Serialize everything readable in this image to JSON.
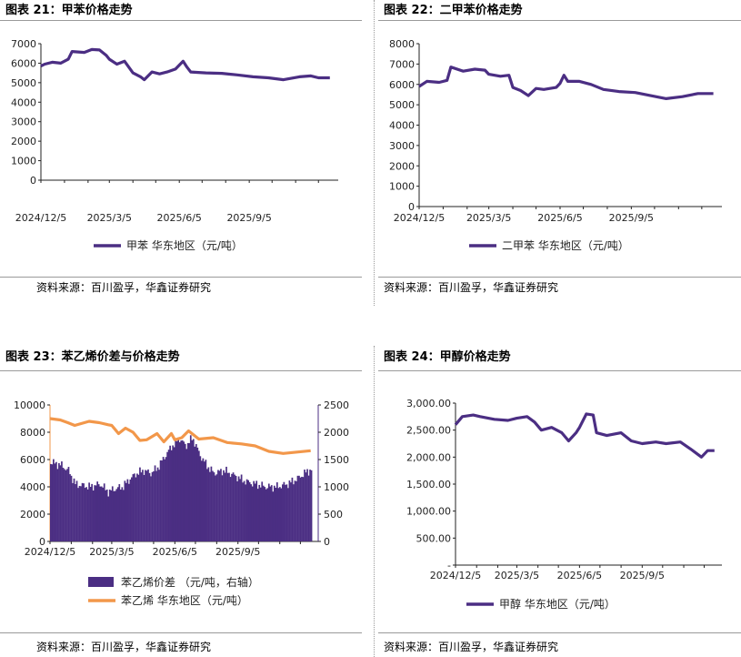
{
  "charts": [
    {
      "title": "图表 21：甲苯价格走势",
      "source": "资料来源：百川盈孚，华鑫证券研究",
      "chart_data": {
        "type": "line",
        "x_ticks": [
          "2024/12/5",
          "2025/3/5",
          "2025/6/5",
          "2025/9/5"
        ],
        "x_range": [
          "2024/12/5",
          "2025/12/31"
        ],
        "ylim": [
          0,
          7000
        ],
        "y_ticks": [
          "0",
          "1000",
          "2000",
          "3000",
          "4000",
          "5000",
          "6000",
          "7000"
        ],
        "legend_position": "bottom",
        "series": [
          {
            "name": "甲苯 华东地区（元/吨）",
            "color": "#4b2e83",
            "points": [
              [
                "2024/12/5",
                5850
              ],
              [
                "2024/12/10",
                5950
              ],
              [
                "2024/12/20",
                6050
              ],
              [
                "2024/12/31",
                6000
              ],
              [
                "2025/1/10",
                6200
              ],
              [
                "2025/1/15",
                6600
              ],
              [
                "2025/1/31",
                6550
              ],
              [
                "2025/2/10",
                6700
              ],
              [
                "2025/2/20",
                6680
              ],
              [
                "2025/3/1",
                6400
              ],
              [
                "2025/3/5",
                6200
              ],
              [
                "2025/3/15",
                5950
              ],
              [
                "2025/3/25",
                6100
              ],
              [
                "2025/4/5",
                5500
              ],
              [
                "2025/4/15",
                5300
              ],
              [
                "2025/4/20",
                5150
              ],
              [
                "2025/4/30",
                5550
              ],
              [
                "2025/5/10",
                5450
              ],
              [
                "2025/5/20",
                5550
              ],
              [
                "2025/5/31",
                5700
              ],
              [
                "2025/6/10",
                6100
              ],
              [
                "2025/6/15",
                5800
              ],
              [
                "2025/6/20",
                5550
              ],
              [
                "2025/7/10",
                5500
              ],
              [
                "2025/7/31",
                5480
              ],
              [
                "2025/8/20",
                5400
              ],
              [
                "2025/9/10",
                5300
              ],
              [
                "2025/9/30",
                5250
              ],
              [
                "2025/10/20",
                5150
              ],
              [
                "2025/11/10",
                5300
              ],
              [
                "2025/11/25",
                5350
              ],
              [
                "2025/12/5",
                5250
              ],
              [
                "2025/12/20",
                5250
              ]
            ]
          }
        ]
      }
    },
    {
      "title": "图表 22：二甲苯价格走势",
      "source": "资料来源：百川盈孚，华鑫证券研究",
      "chart_data": {
        "type": "line",
        "x_ticks": [
          "2024/12/5",
          "2025/3/5",
          "2025/6/5",
          "2025/9/5"
        ],
        "x_range": [
          "2024/12/5",
          "2025/12/31"
        ],
        "ylim": [
          0,
          8000
        ],
        "y_ticks": [
          "0",
          "1000",
          "2000",
          "3000",
          "4000",
          "5000",
          "6000",
          "7000",
          "8000"
        ],
        "legend_position": "bottom",
        "series": [
          {
            "name": "二甲苯 华东地区（元/吨）",
            "color": "#4b2e83",
            "points": [
              [
                "2024/12/5",
                5900
              ],
              [
                "2024/12/15",
                6150
              ],
              [
                "2024/12/31",
                6100
              ],
              [
                "2025/1/10",
                6200
              ],
              [
                "2025/1/15",
                6850
              ],
              [
                "2025/1/31",
                6650
              ],
              [
                "2025/2/15",
                6750
              ],
              [
                "2025/2/28",
                6700
              ],
              [
                "2025/3/5",
                6500
              ],
              [
                "2025/3/20",
                6400
              ],
              [
                "2025/3/31",
                6450
              ],
              [
                "2025/4/5",
                5850
              ],
              [
                "2025/4/15",
                5700
              ],
              [
                "2025/4/25",
                5450
              ],
              [
                "2025/5/5",
                5800
              ],
              [
                "2025/5/15",
                5750
              ],
              [
                "2025/5/31",
                5850
              ],
              [
                "2025/6/5",
                6050
              ],
              [
                "2025/6/10",
                6450
              ],
              [
                "2025/6/15",
                6150
              ],
              [
                "2025/6/30",
                6150
              ],
              [
                "2025/7/15",
                6000
              ],
              [
                "2025/7/31",
                5750
              ],
              [
                "2025/8/20",
                5650
              ],
              [
                "2025/9/10",
                5600
              ],
              [
                "2025/9/30",
                5450
              ],
              [
                "2025/10/20",
                5300
              ],
              [
                "2025/11/10",
                5400
              ],
              [
                "2025/11/30",
                5550
              ],
              [
                "2025/12/20",
                5550
              ]
            ]
          }
        ]
      }
    },
    {
      "title": "图表 23：苯乙烯价差与价格走势",
      "source": "资料来源：百川盈孚，华鑫证券研究",
      "chart_data": {
        "type": "area",
        "x_ticks": [
          "2024/12/5",
          "2025/3/5",
          "2025/6/5",
          "2025/9/5"
        ],
        "x_range": [
          "2024/12/5",
          "2025/12/31"
        ],
        "ylim": [
          0,
          10000
        ],
        "y_ticks": [
          "0",
          "2000",
          "4000",
          "6000",
          "8000",
          "10000"
        ],
        "y2lim": [
          0,
          2500
        ],
        "y2_ticks": [
          "0",
          "500",
          "1000",
          "1500",
          "2000",
          "2500"
        ],
        "legend_position": "bottom",
        "series": [
          {
            "name": "苯乙烯价差 （元/吨，右轴）",
            "color": "#4b2e83",
            "axis": "right",
            "type": "area",
            "points": [
              [
                "2024/12/5",
                1450
              ],
              [
                "2024/12/20",
                1400
              ],
              [
                "2024/12/31",
                1300
              ],
              [
                "2025/1/10",
                1050
              ],
              [
                "2025/1/31",
                1000
              ],
              [
                "2025/2/15",
                1050
              ],
              [
                "2025/2/28",
                900
              ],
              [
                "2025/3/5",
                950
              ],
              [
                "2025/3/20",
                1000
              ],
              [
                "2025/3/31",
                1150
              ],
              [
                "2025/4/10",
                1250
              ],
              [
                "2025/4/20",
                1300
              ],
              [
                "2025/4/30",
                1250
              ],
              [
                "2025/5/10",
                1350
              ],
              [
                "2025/5/20",
                1550
              ],
              [
                "2025/5/31",
                1750
              ],
              [
                "2025/6/5",
                1800
              ],
              [
                "2025/6/10",
                1900
              ],
              [
                "2025/6/20",
                1750
              ],
              [
                "2025/6/30",
                1900
              ],
              [
                "2025/7/10",
                1600
              ],
              [
                "2025/7/20",
                1400
              ],
              [
                "2025/7/31",
                1250
              ],
              [
                "2025/8/15",
                1300
              ],
              [
                "2025/8/31",
                1200
              ],
              [
                "2025/9/15",
                1100
              ],
              [
                "2025/9/30",
                1050
              ],
              [
                "2025/10/15",
                1000
              ],
              [
                "2025/10/31",
                1000
              ],
              [
                "2025/11/15",
                1050
              ],
              [
                "2025/11/30",
                1150
              ],
              [
                "2025/12/10",
                1250
              ],
              [
                "2025/12/20",
                1320
              ]
            ]
          },
          {
            "name": "苯乙烯 华东地区（元/吨）",
            "color": "#f2974a",
            "axis": "left",
            "type": "line",
            "points": [
              [
                "2024/12/5",
                9000
              ],
              [
                "2024/12/20",
                8900
              ],
              [
                "2024/12/31",
                8700
              ],
              [
                "2025/1/10",
                8500
              ],
              [
                "2025/1/31",
                8800
              ],
              [
                "2025/2/15",
                8700
              ],
              [
                "2025/2/28",
                8550
              ],
              [
                "2025/3/5",
                8500
              ],
              [
                "2025/3/15",
                7900
              ],
              [
                "2025/3/25",
                8300
              ],
              [
                "2025/4/5",
                8000
              ],
              [
                "2025/4/15",
                7400
              ],
              [
                "2025/4/25",
                7450
              ],
              [
                "2025/5/10",
                7900
              ],
              [
                "2025/5/20",
                7300
              ],
              [
                "2025/5/31",
                7900
              ],
              [
                "2025/6/5",
                7450
              ],
              [
                "2025/6/15",
                7600
              ],
              [
                "2025/6/25",
                8100
              ],
              [
                "2025/7/10",
                7500
              ],
              [
                "2025/7/31",
                7600
              ],
              [
                "2025/8/20",
                7250
              ],
              [
                "2025/9/10",
                7150
              ],
              [
                "2025/9/30",
                7000
              ],
              [
                "2025/10/20",
                6600
              ],
              [
                "2025/11/10",
                6450
              ],
              [
                "2025/11/30",
                6550
              ],
              [
                "2025/12/20",
                6650
              ]
            ]
          }
        ]
      }
    },
    {
      "title": "图表 24：甲醇价格走势",
      "source": "资料来源：百川盈孚，华鑫证券研究",
      "chart_data": {
        "type": "line",
        "x_ticks": [
          "2024/12/5",
          "2025/3/5",
          "2025/6/5",
          "2025/9/5"
        ],
        "x_range": [
          "2024/12/5",
          "2025/12/31"
        ],
        "ylim": [
          0,
          3000
        ],
        "y_ticks": [
          "-",
          "500.00",
          "1,000.00",
          "1,500.00",
          "2,000.00",
          "2,500.00",
          "3,000.00"
        ],
        "legend_position": "bottom",
        "series": [
          {
            "name": "甲醇   华东地区（元/吨）",
            "color": "#4b2e83",
            "points": [
              [
                "2024/12/5",
                2600
              ],
              [
                "2024/12/15",
                2750
              ],
              [
                "2024/12/31",
                2780
              ],
              [
                "2025/1/10",
                2750
              ],
              [
                "2025/1/31",
                2700
              ],
              [
                "2025/2/20",
                2680
              ],
              [
                "2025/3/5",
                2720
              ],
              [
                "2025/3/20",
                2750
              ],
              [
                "2025/3/31",
                2650
              ],
              [
                "2025/4/10",
                2500
              ],
              [
                "2025/4/25",
                2550
              ],
              [
                "2025/5/10",
                2450
              ],
              [
                "2025/5/20",
                2300
              ],
              [
                "2025/5/31",
                2450
              ],
              [
                "2025/6/5",
                2550
              ],
              [
                "2025/6/15",
                2800
              ],
              [
                "2025/6/25",
                2780
              ],
              [
                "2025/6/30",
                2450
              ],
              [
                "2025/7/15",
                2400
              ],
              [
                "2025/8/5",
                2450
              ],
              [
                "2025/8/20",
                2300
              ],
              [
                "2025/9/5",
                2250
              ],
              [
                "2025/9/25",
                2280
              ],
              [
                "2025/10/10",
                2250
              ],
              [
                "2025/10/31",
                2280
              ],
              [
                "2025/11/15",
                2150
              ],
              [
                "2025/12/1",
                2000
              ],
              [
                "2025/12/10",
                2120
              ],
              [
                "2025/12/20",
                2120
              ]
            ]
          }
        ]
      }
    }
  ]
}
